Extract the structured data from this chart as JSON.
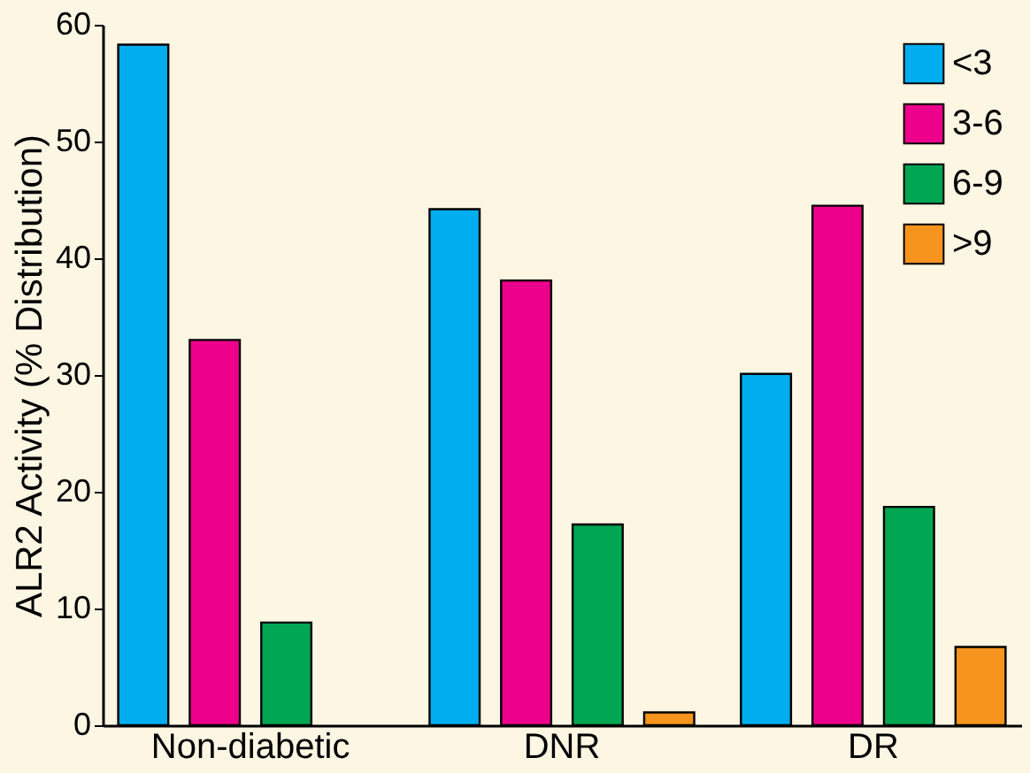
{
  "chart_data": {
    "type": "bar",
    "ylabel": "ALR2 Activity (% Distribution)",
    "categories": [
      "Non-diabetic",
      "DNR",
      "DR"
    ],
    "series": [
      {
        "name": "<3",
        "color": "#00aeef",
        "values": [
          58.3,
          44.2,
          30.1
        ]
      },
      {
        "name": "3-6",
        "color": "#ec008c",
        "values": [
          33,
          38.1,
          44.5
        ]
      },
      {
        "name": "6-9",
        "color": "#00a651",
        "values": [
          8.8,
          17.2,
          18.7
        ]
      },
      {
        "name": ">9",
        "color": "#f7941d",
        "values": [
          null,
          1.1,
          6.7
        ]
      }
    ],
    "ylim": [
      0,
      60
    ],
    "yticks": [
      0,
      10,
      20,
      30,
      40,
      50,
      60
    ],
    "grid": false,
    "legend": "top right"
  }
}
